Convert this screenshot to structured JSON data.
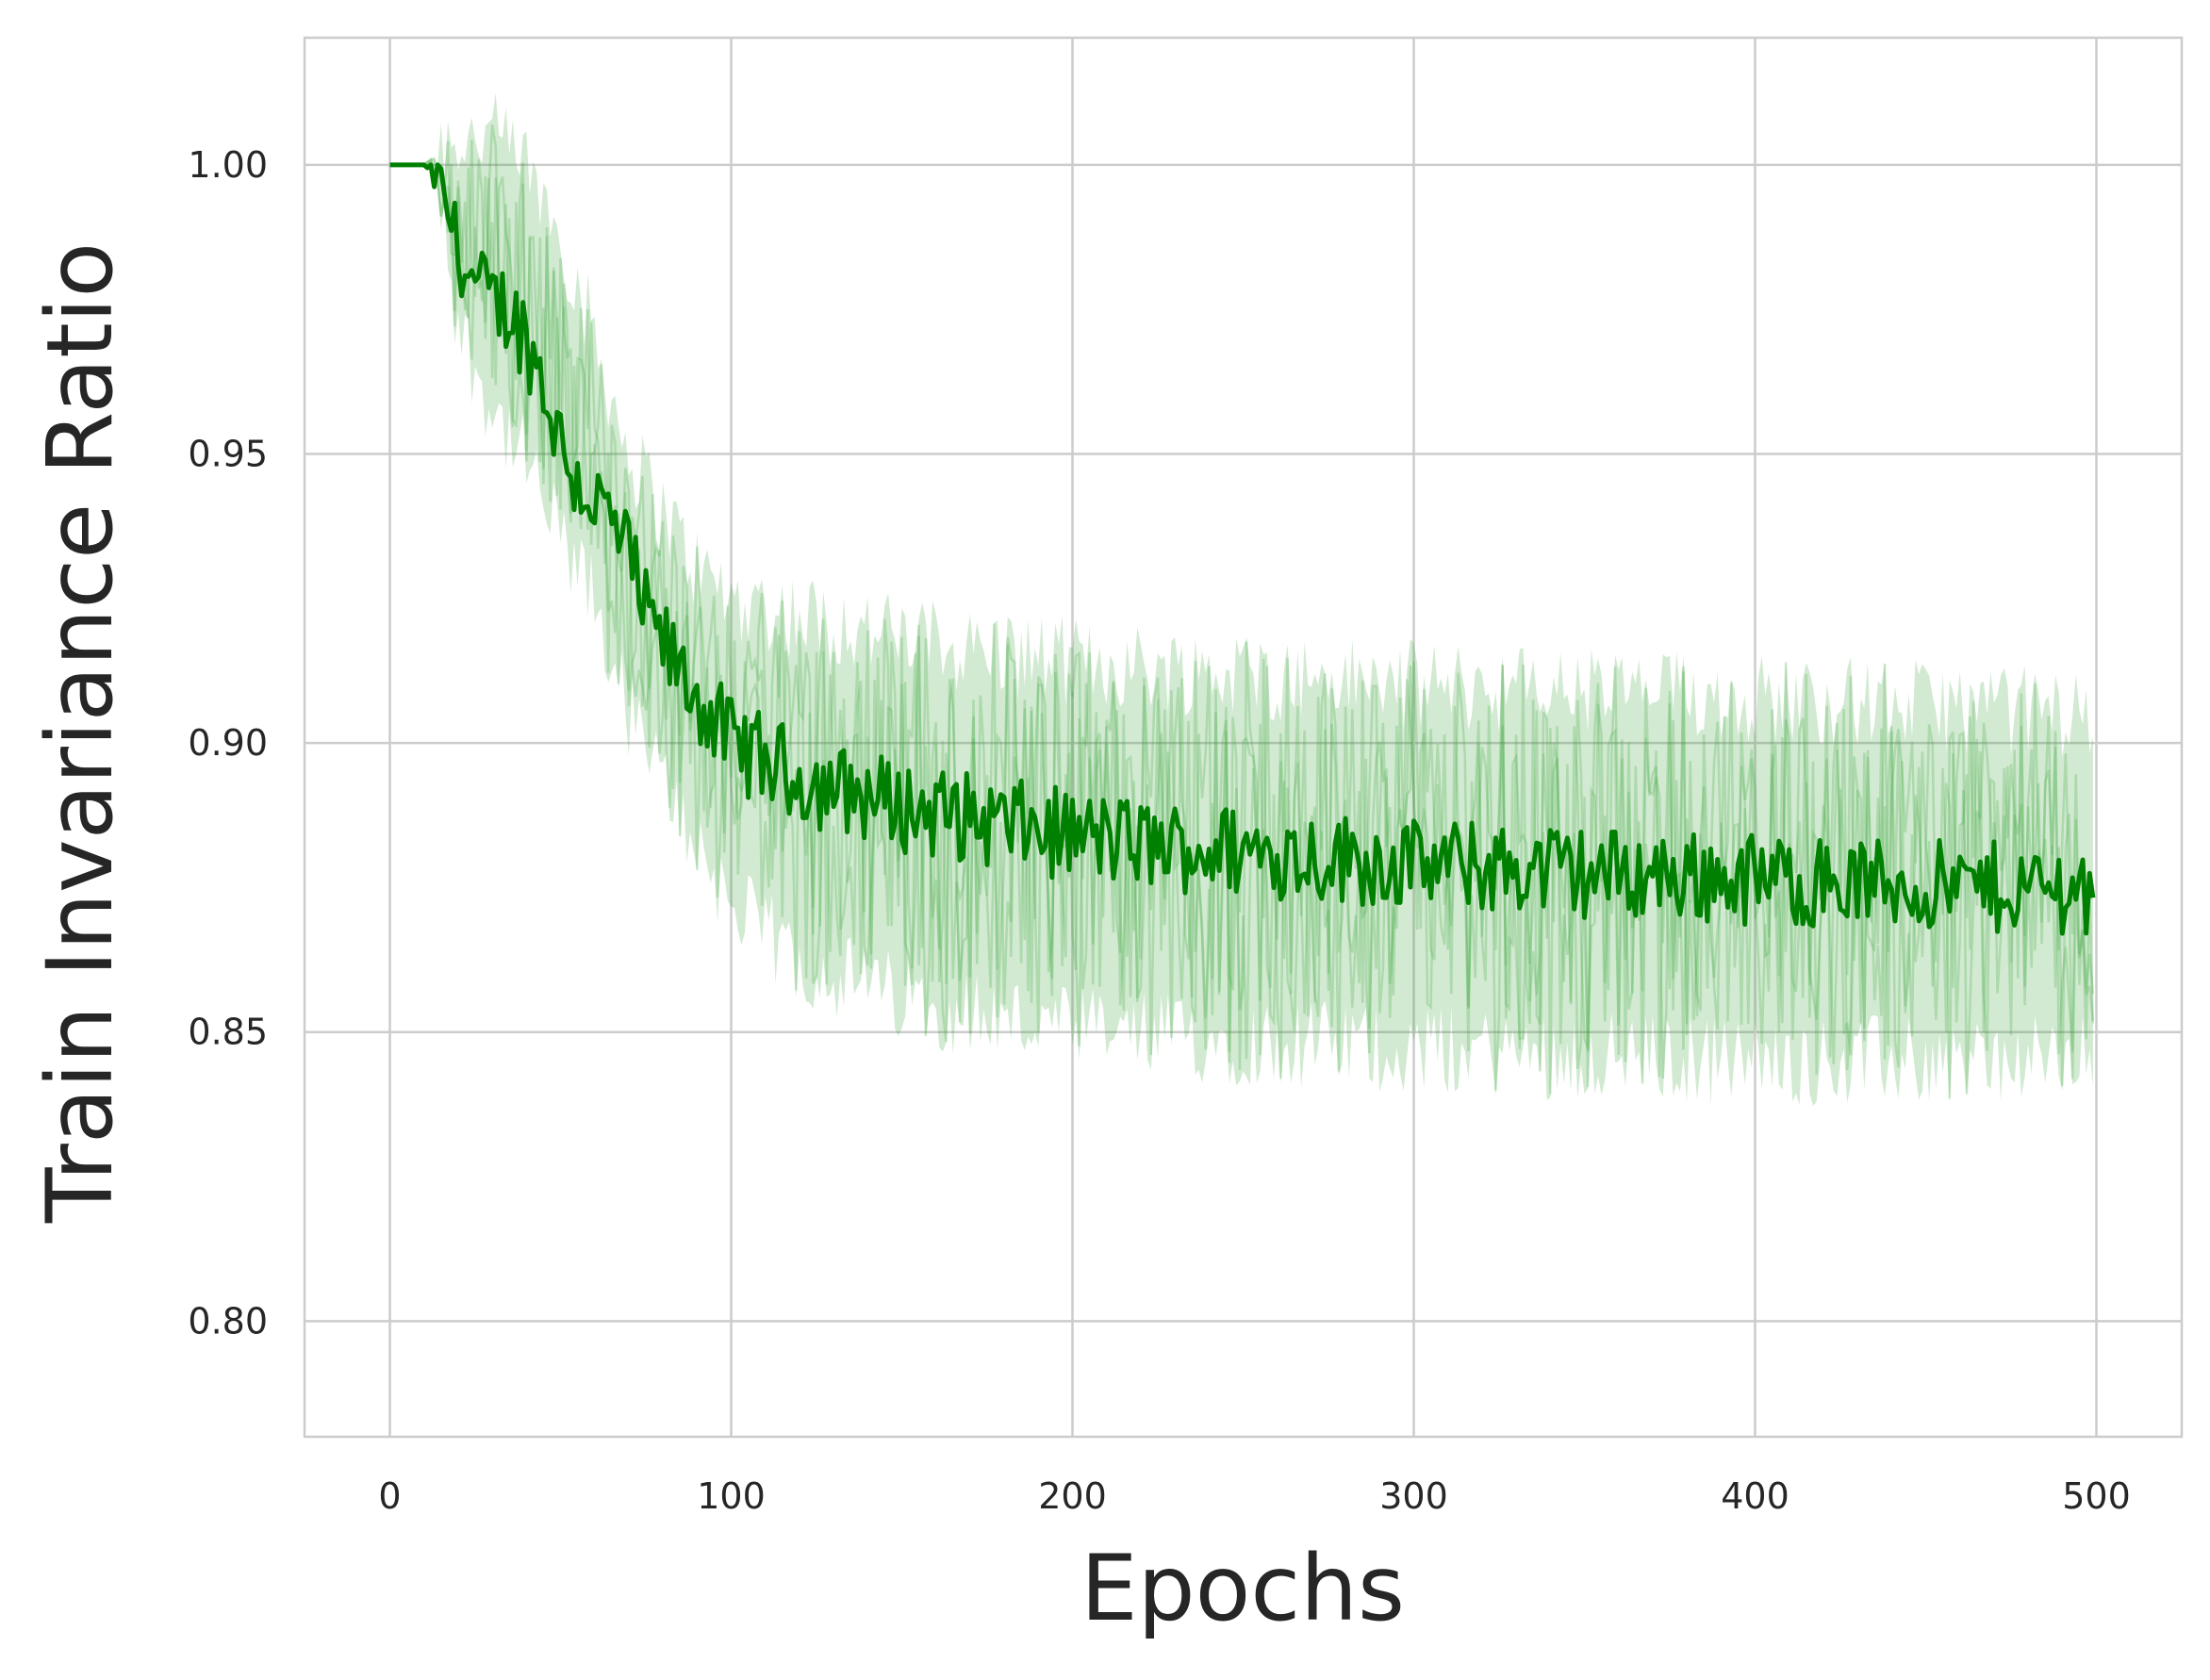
{
  "chart_data": {
    "type": "line",
    "title": "",
    "xlabel": "Epochs",
    "ylabel": "Train Invariance Ratio",
    "xlim": [
      -25,
      525
    ],
    "ylim": [
      0.78,
      1.022
    ],
    "x_ticks": [
      0,
      100,
      200,
      300,
      400,
      500
    ],
    "x_tick_labels": [
      "0",
      "100",
      "200",
      "300",
      "400",
      "500"
    ],
    "y_ticks": [
      0.8,
      0.85,
      0.9,
      0.95,
      1.0
    ],
    "y_tick_labels": [
      "0.80",
      "0.85",
      "0.90",
      "0.95",
      "1.00"
    ],
    "grid": true,
    "legend": "none",
    "colors": {
      "line": "#008000",
      "band": "#2ca02c",
      "grid": "#cccccc",
      "spine": "#cccccc",
      "text": "#262626"
    },
    "series": [
      {
        "epochs": 500,
        "mean_anchors": {
          "x": [
            0,
            5,
            10,
            14,
            18,
            22,
            26,
            30,
            35,
            40,
            45,
            50,
            55,
            60,
            65,
            70,
            75,
            80,
            85,
            90,
            95,
            100,
            110,
            120,
            130,
            140,
            150,
            170,
            200,
            230,
            260,
            300,
            340,
            380,
            420,
            460,
            500
          ],
          "y": [
            1.0,
            1.0,
            1.0,
            0.998,
            0.99,
            0.982,
            0.978,
            0.976,
            0.975,
            0.97,
            0.962,
            0.952,
            0.945,
            0.942,
            0.938,
            0.932,
            0.922,
            0.917,
            0.912,
            0.908,
            0.904,
            0.9,
            0.897,
            0.894,
            0.892,
            0.891,
            0.889,
            0.887,
            0.884,
            0.882,
            0.881,
            0.879,
            0.878,
            0.877,
            0.876,
            0.875,
            0.875
          ]
        },
        "mean_noise": 0.008,
        "band_upper_anchors": {
          "x": [
            0,
            10,
            15,
            20,
            30,
            40,
            50,
            60,
            70,
            80,
            90,
            100,
            120,
            150,
            200,
            300,
            400,
            500
          ],
          "y": [
            1.0,
            1.0,
            1.004,
            1.005,
            1.005,
            1.0,
            0.988,
            0.97,
            0.95,
            0.94,
            0.93,
            0.925,
            0.922,
            0.918,
            0.914,
            0.91,
            0.908,
            0.905
          ]
        },
        "band_lower_anchors": {
          "x": [
            0,
            10,
            15,
            20,
            30,
            40,
            50,
            60,
            70,
            80,
            90,
            100,
            120,
            150,
            200,
            300,
            400,
            500
          ],
          "y": [
            1.0,
            1.0,
            0.995,
            0.972,
            0.958,
            0.948,
            0.935,
            0.924,
            0.905,
            0.893,
            0.883,
            0.872,
            0.862,
            0.856,
            0.85,
            0.847,
            0.845,
            0.845
          ]
        },
        "band_noise": 0.016,
        "faint_runs": 3
      }
    ]
  }
}
